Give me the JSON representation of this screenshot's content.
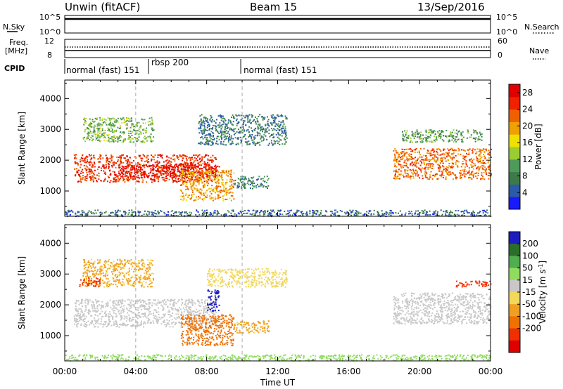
{
  "header": {
    "title": "Unwin (fitACF)",
    "beam": "Beam 15",
    "date": "13/Sep/2016"
  },
  "strip_labels": {
    "nsky": "N.Sky",
    "nsky_ticks": [
      "10^5",
      "10^0"
    ],
    "nsearch": "N.Search",
    "nsearch_ticks": [
      "10^5",
      "10^0"
    ],
    "freq": "Freq.",
    "freq_unit": "[MHz]",
    "freq_ticks": [
      "12",
      "8"
    ],
    "nave": "Nave",
    "nave_ticks": [
      "60",
      "0"
    ],
    "cpid": "CPID"
  },
  "cpid_modes": [
    {
      "label": "normal (fast) 151",
      "start_hour": 0
    },
    {
      "label": "rbsp 200",
      "start_hour": 4.8
    },
    {
      "label": "normal (fast) 151",
      "start_hour": 10
    }
  ],
  "colors": {
    "power_scale": [
      "#1a1aff",
      "#2a5aa8",
      "#3d7a4a",
      "#4d9a5a",
      "#9acd32",
      "#f0e000",
      "#f0a000",
      "#f06000",
      "#f02000",
      "#e00000"
    ],
    "velocity_scale": [
      "#1d1dbf",
      "#2b6e2b",
      "#4fae4f",
      "#8fdc5f",
      "#c8c8c8",
      "#f2d85a",
      "#f0a020",
      "#f07000",
      "#f03000",
      "#e00000"
    ]
  },
  "chart_data": [
    {
      "type": "heatmap",
      "name": "power",
      "x_start": "00:00",
      "x_end": "00:00",
      "xlim_hours": [
        0,
        24
      ],
      "ylabel": "Slant Range [km]",
      "ylim": [
        180,
        4600
      ],
      "y_ticks": [
        1000,
        2000,
        3000,
        4000
      ],
      "colorbar_label": "Power [dB]",
      "colorbar_ticks": [
        4,
        8,
        12,
        16,
        20,
        24,
        28
      ],
      "colorbar_range": [
        0,
        30
      ],
      "regions": [
        {
          "x": [
            0.5,
            8.5
          ],
          "y": [
            1300,
            2200
          ],
          "value": 25
        },
        {
          "x": [
            3.0,
            8.7
          ],
          "y": [
            1450,
            1900
          ],
          "value": 28
        },
        {
          "x": [
            6.5,
            9.5
          ],
          "y": [
            700,
            1700
          ],
          "value": 20
        },
        {
          "x": [
            7.5,
            12.5
          ],
          "y": [
            2500,
            3500
          ],
          "value": 7
        },
        {
          "x": [
            1.0,
            5.0
          ],
          "y": [
            2600,
            3400
          ],
          "value": 12
        },
        {
          "x": [
            18.5,
            24.0
          ],
          "y": [
            1400,
            2400
          ],
          "value": 22
        },
        {
          "x": [
            19.0,
            23.5
          ],
          "y": [
            2600,
            3000
          ],
          "value": 10
        },
        {
          "x": [
            9.5,
            11.5
          ],
          "y": [
            1100,
            1500
          ],
          "value": 8
        },
        {
          "x": [
            0.0,
            24.0
          ],
          "y": [
            200,
            400
          ],
          "value": 6
        }
      ]
    },
    {
      "type": "heatmap",
      "name": "velocity",
      "x_start": "00:00",
      "x_end": "00:00",
      "xlim_hours": [
        0,
        24
      ],
      "xlabel": "Time UT",
      "x_ticks": [
        "00:00",
        "04:00",
        "08:00",
        "12:00",
        "16:00",
        "20:00",
        "00:00"
      ],
      "ylabel": "Slant Range [km]",
      "ylim": [
        180,
        4600
      ],
      "y_ticks": [
        1000,
        2000,
        3000,
        4000
      ],
      "colorbar_label": "Velocity [m s^-1]",
      "colorbar_ticks": [
        200,
        100,
        50,
        15,
        -15,
        -50,
        -100,
        -200
      ],
      "regions": [
        {
          "x": [
            0.5,
            8.5
          ],
          "y": [
            1300,
            2200
          ],
          "value": 0
        },
        {
          "x": [
            6.5,
            9.5
          ],
          "y": [
            700,
            1700
          ],
          "value": -120
        },
        {
          "x": [
            8.0,
            8.7
          ],
          "y": [
            1800,
            2500
          ],
          "value": 200
        },
        {
          "x": [
            1.0,
            5.0
          ],
          "y": [
            2600,
            3500
          ],
          "value": -40
        },
        {
          "x": [
            0.8,
            2.0
          ],
          "y": [
            2600,
            2900
          ],
          "value": -200
        },
        {
          "x": [
            8.0,
            12.5
          ],
          "y": [
            2600,
            3200
          ],
          "value": -20
        },
        {
          "x": [
            18.5,
            24.0
          ],
          "y": [
            1400,
            2400
          ],
          "value": 0
        },
        {
          "x": [
            22.0,
            24.0
          ],
          "y": [
            2600,
            2800
          ],
          "value": -200
        },
        {
          "x": [
            9.5,
            11.5
          ],
          "y": [
            1100,
            1500
          ],
          "value": -50
        },
        {
          "x": [
            0.0,
            24.0
          ],
          "y": [
            200,
            400
          ],
          "value": 20
        }
      ]
    }
  ]
}
